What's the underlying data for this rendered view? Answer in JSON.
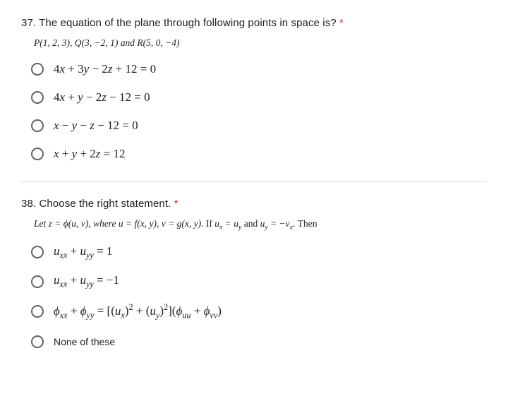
{
  "q37": {
    "number": "37.",
    "title": "The equation of the plane through following points in space is?",
    "required": "*",
    "subtitle_html": "<span class='ital'>P</span>(1, 2, 3), <span class='ital'>Q</span>(3, −2, 1) and <span class='ital'>R</span>(5, 0, −4)",
    "options": [
      {
        "html": "4<span class='ital'>x</span> + 3<span class='ital'>y</span> − 2<span class='ital'>z</span> + 12 = 0",
        "type": "math"
      },
      {
        "html": "4<span class='ital'>x</span> + <span class='ital'>y</span> − 2<span class='ital'>z</span> − 12 = 0",
        "type": "math"
      },
      {
        "html": "<span class='ital'>x</span> − <span class='ital'>y</span> − <span class='ital'>z</span> − 12 = 0",
        "type": "math"
      },
      {
        "html": "<span class='ital'>x</span> + <span class='ital'>y</span> + 2<span class='ital'>z</span> = 12",
        "type": "math"
      }
    ]
  },
  "q38": {
    "number": "38.",
    "title": "Choose the right statement.",
    "required": "*",
    "subtitle_html": "Let <span class='ital'>z</span> = <span class='ital'>ϕ</span>(<span class='ital'>u</span>, <span class='ital'>v</span>), where <span class='ital'>u</span> = <span class='ital'>f</span>(<span class='ital'>x</span>, <span class='ital'>y</span>), <span class='ital'>v</span> = <span class='ital'>g</span>(<span class='ital'>x</span>, <span class='ital'>y</span>). <span style='font-style:normal;font-family:serif'>If </span><span class='ital'>u<span class='sub'>x</span></span> = <span class='ital'>u<span class='sub'>y</span></span> <span style='font-style:normal;font-family:serif'>and</span> <span class='ital'>u<span class='sub'>y</span></span> = −<span class='ital'>v<span class='sub'>x</span></span>. <span style='font-style:normal;font-family:serif'>Then</span>",
    "options": [
      {
        "html": "<span class='ital'>u<span class='sub'>xx</span></span> + <span class='ital'>u<span class='sub'>yy</span></span> = 1",
        "type": "math"
      },
      {
        "html": "<span class='ital'>u<span class='sub'>xx</span></span> + <span class='ital'>u<span class='sub'>yy</span></span> = −1",
        "type": "math"
      },
      {
        "html": "<span class='ital'>ϕ<span class='sub'>xx</span></span> + <span class='ital'>ϕ<span class='sub'>yy</span></span> = [(<span class='ital'>u<span class='sub'>x</span></span>)<span class='sup'>2</span> + (<span class='ital'>u<span class='sub'>y</span></span>)<span class='sup'>2</span>](<span class='ital'>ϕ<span class='sub'>uu</span></span> + <span class='ital'>ϕ<span class='sub'>vv</span></span>)",
        "type": "math"
      },
      {
        "html": "None of these",
        "type": "sans"
      }
    ]
  },
  "colors": {
    "text": "#202124",
    "radio_border": "#5f6368",
    "required": "#d93025",
    "divider": "#e0e0e0",
    "background": "#ffffff"
  },
  "typography": {
    "title_fontsize": 15,
    "subtitle_fontsize": 13.5,
    "option_math_fontsize": 17,
    "option_sans_fontsize": 14,
    "math_font": "Times New Roman, serif",
    "ui_font": "Segoe UI, Arial, sans-serif"
  }
}
